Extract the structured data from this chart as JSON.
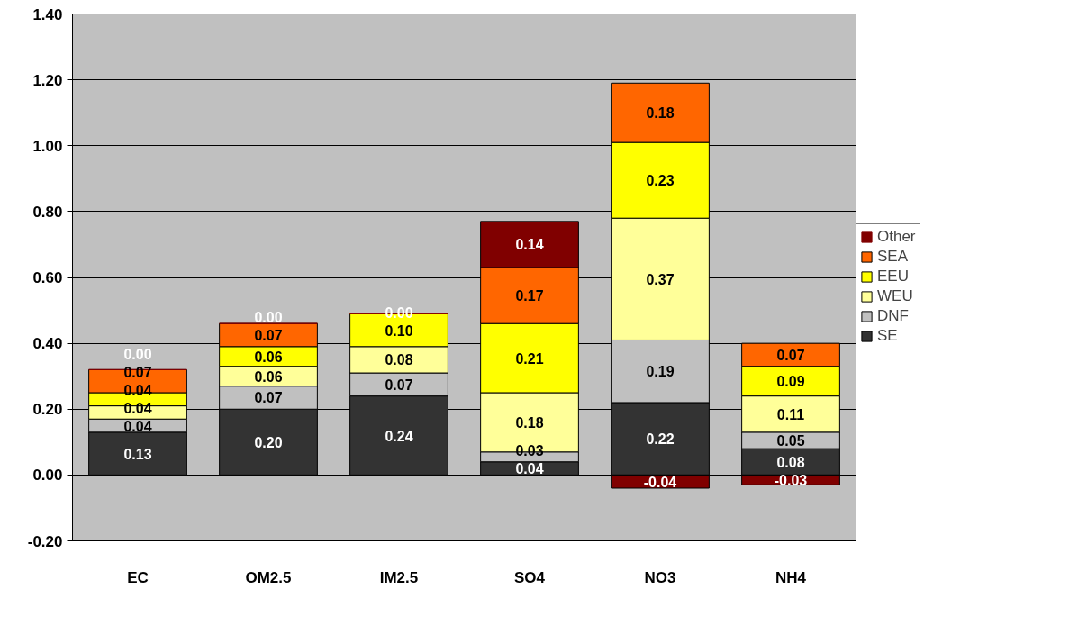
{
  "chart_data": {
    "type": "bar",
    "stacked": true,
    "categories": [
      "EC",
      "OM2.5",
      "IM2.5",
      "SO4",
      "NO3",
      "NH4"
    ],
    "series": [
      {
        "name": "SE",
        "color": "#333333",
        "values": [
          0.13,
          0.2,
          0.24,
          0.04,
          0.22,
          0.08
        ],
        "value_labels": [
          "0.13",
          "0.20",
          "0.24",
          "0.04",
          "0.22",
          "0.08"
        ]
      },
      {
        "name": "DNF",
        "color": "#c0c0c0",
        "values": [
          0.04,
          0.07,
          0.07,
          0.03,
          0.19,
          0.05
        ],
        "value_labels": [
          "0.04",
          "0.07",
          "0.07",
          "0.03",
          "0.19",
          "0.05"
        ]
      },
      {
        "name": "WEU",
        "color": "#ffff99",
        "values": [
          0.04,
          0.06,
          0.08,
          0.18,
          0.37,
          0.11
        ],
        "value_labels": [
          "0.04",
          "0.06",
          "0.08",
          "0.18",
          "0.37",
          "0.11"
        ]
      },
      {
        "name": "EEU",
        "color": "#ffff00",
        "values": [
          0.04,
          0.06,
          0.1,
          0.21,
          0.23,
          0.09
        ],
        "value_labels": [
          "0.04",
          "0.06",
          "0.10",
          "0.21",
          "0.23",
          "0.09"
        ]
      },
      {
        "name": "SEA",
        "color": "#ff6600",
        "values": [
          0.07,
          0.07,
          0.0,
          0.17,
          0.18,
          0.07
        ],
        "value_labels": [
          "0.07",
          "0.07",
          null,
          "0.17",
          "0.18",
          "0.07"
        ]
      },
      {
        "name": "Other",
        "color": "#800000",
        "values": [
          0.0,
          0.0,
          0.0,
          0.14,
          -0.04,
          -0.03
        ],
        "value_labels": [
          "0.00",
          "0.00",
          "0.00",
          "0.14",
          "-0.04",
          "-0.03"
        ]
      }
    ],
    "ylim": [
      -0.2,
      1.4
    ],
    "yticks": [
      {
        "value": -0.2,
        "label": "-0.20"
      },
      {
        "value": 0,
        "label": "0.00"
      },
      {
        "value": 0.2,
        "label": "0.20"
      },
      {
        "value": 0.4,
        "label": "0.40"
      },
      {
        "value": 0.6,
        "label": "0.60"
      },
      {
        "value": 0.8,
        "label": "0.80"
      },
      {
        "value": 1.0,
        "label": "1.00"
      },
      {
        "value": 1.2,
        "label": "1.20"
      },
      {
        "value": 1.4,
        "label": "1.40"
      }
    ],
    "grid": "y",
    "legend": "right"
  }
}
